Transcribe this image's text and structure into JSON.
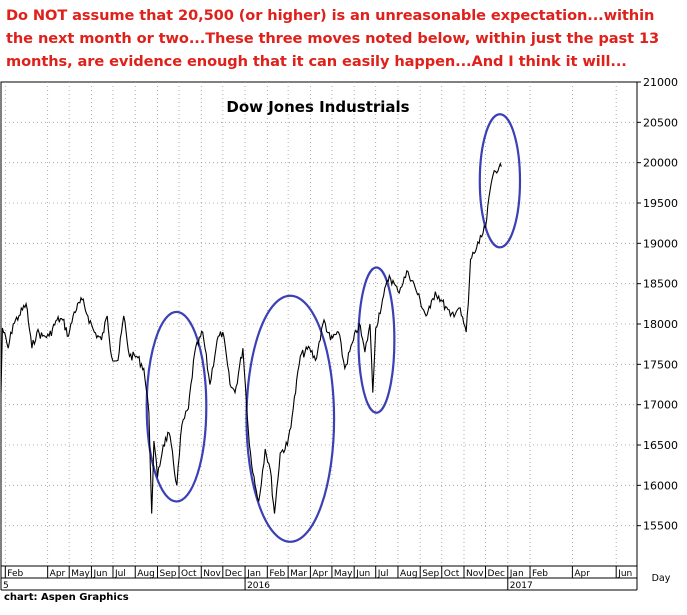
{
  "headline": "Do NOT assume that 20,500 (or higher) is an unreasonable expectation...within the next month or two...These three moves noted below, within just the past 13 months, are evidence enough that it can easily happen...And I think it will...",
  "source": "chart: Aspen Graphics",
  "colors": {
    "headline": "#e0201a",
    "price_line": "#000000",
    "circles": "#3b40b5",
    "grid": "#9a9a9a"
  },
  "chart_data": {
    "type": "line",
    "title": "Dow Jones Industrials",
    "frequency_label": "Day",
    "ylim": [
      15000,
      21000
    ],
    "yticks": [
      15500,
      16000,
      16500,
      17000,
      17500,
      18000,
      18500,
      19000,
      19500,
      20000,
      20500,
      21000
    ],
    "x_range": [
      "2015-01-26",
      "2017-06-30"
    ],
    "month_ticks": [
      {
        "label": "Feb",
        "date": "2015-02-01"
      },
      {
        "label": "Apr",
        "date": "2015-04-01"
      },
      {
        "label": "May",
        "date": "2015-05-01"
      },
      {
        "label": "Jun",
        "date": "2015-06-01"
      },
      {
        "label": "Jul",
        "date": "2015-07-01"
      },
      {
        "label": "Aug",
        "date": "2015-08-01"
      },
      {
        "label": "Sep",
        "date": "2015-09-01"
      },
      {
        "label": "Oct",
        "date": "2015-10-01"
      },
      {
        "label": "Nov",
        "date": "2015-11-01"
      },
      {
        "label": "Dec",
        "date": "2015-12-01"
      },
      {
        "label": "Jan",
        "date": "2016-01-01"
      },
      {
        "label": "Feb",
        "date": "2016-02-01"
      },
      {
        "label": "Mar",
        "date": "2016-03-01"
      },
      {
        "label": "Apr",
        "date": "2016-04-01"
      },
      {
        "label": "May",
        "date": "2016-05-01"
      },
      {
        "label": "Jun",
        "date": "2016-06-01"
      },
      {
        "label": "Jul",
        "date": "2016-07-01"
      },
      {
        "label": "Aug",
        "date": "2016-08-01"
      },
      {
        "label": "Sep",
        "date": "2016-09-01"
      },
      {
        "label": "Oct",
        "date": "2016-10-01"
      },
      {
        "label": "Nov",
        "date": "2016-11-01"
      },
      {
        "label": "Dec",
        "date": "2016-12-01"
      },
      {
        "label": "Jan",
        "date": "2017-01-01"
      },
      {
        "label": "Feb",
        "date": "2017-02-01"
      },
      {
        "label": "Apr",
        "date": "2017-04-01"
      },
      {
        "label": "Jun",
        "date": "2017-06-01"
      }
    ],
    "year_labels": [
      {
        "label": "5",
        "date": "2015-01-26"
      },
      {
        "label": "2016",
        "date": "2016-01-01"
      },
      {
        "label": "2017",
        "date": "2017-01-01"
      }
    ],
    "series": [
      {
        "values": [
          [
            "2015-01-26",
            17150
          ],
          [
            "2015-01-28",
            17950
          ],
          [
            "2015-02-05",
            17700
          ],
          [
            "2015-02-12",
            18000
          ],
          [
            "2015-02-20",
            18100
          ],
          [
            "2015-03-02",
            18250
          ],
          [
            "2015-03-10",
            17700
          ],
          [
            "2015-03-17",
            17900
          ],
          [
            "2015-03-25",
            17850
          ],
          [
            "2015-04-03",
            17850
          ],
          [
            "2015-04-14",
            18050
          ],
          [
            "2015-04-22",
            18050
          ],
          [
            "2015-04-30",
            17850
          ],
          [
            "2015-05-08",
            18150
          ],
          [
            "2015-05-19",
            18300
          ],
          [
            "2015-05-27",
            18100
          ],
          [
            "2015-06-05",
            17900
          ],
          [
            "2015-06-15",
            17800
          ],
          [
            "2015-06-23",
            18100
          ],
          [
            "2015-06-29",
            17600
          ],
          [
            "2015-07-08",
            17550
          ],
          [
            "2015-07-16",
            18100
          ],
          [
            "2015-07-24",
            17600
          ],
          [
            "2015-08-03",
            17600
          ],
          [
            "2015-08-13",
            17450
          ],
          [
            "2015-08-20",
            16900
          ],
          [
            "2015-08-24",
            15650
          ],
          [
            "2015-08-27",
            16550
          ],
          [
            "2015-09-01",
            16100
          ],
          [
            "2015-09-09",
            16500
          ],
          [
            "2015-09-17",
            16650
          ],
          [
            "2015-09-28",
            16000
          ],
          [
            "2015-10-05",
            16750
          ],
          [
            "2015-10-14",
            16950
          ],
          [
            "2015-10-23",
            17650
          ],
          [
            "2015-11-03",
            17900
          ],
          [
            "2015-11-13",
            17250
          ],
          [
            "2015-11-23",
            17800
          ],
          [
            "2015-12-01",
            17900
          ],
          [
            "2015-12-11",
            17250
          ],
          [
            "2015-12-18",
            17150
          ],
          [
            "2015-12-29",
            17700
          ],
          [
            "2016-01-07",
            16500
          ],
          [
            "2016-01-15",
            16000
          ],
          [
            "2016-01-20",
            15800
          ],
          [
            "2016-01-29",
            16450
          ],
          [
            "2016-02-05",
            16200
          ],
          [
            "2016-02-11",
            15650
          ],
          [
            "2016-02-19",
            16400
          ],
          [
            "2016-02-29",
            16500
          ],
          [
            "2016-03-08",
            16950
          ],
          [
            "2016-03-18",
            17600
          ],
          [
            "2016-03-31",
            17700
          ],
          [
            "2016-04-08",
            17550
          ],
          [
            "2016-04-20",
            18050
          ],
          [
            "2016-04-29",
            17800
          ],
          [
            "2016-05-10",
            17900
          ],
          [
            "2016-05-19",
            17450
          ],
          [
            "2016-05-31",
            17800
          ],
          [
            "2016-06-08",
            18000
          ],
          [
            "2016-06-16",
            17650
          ],
          [
            "2016-06-23",
            18000
          ],
          [
            "2016-06-27",
            17150
          ],
          [
            "2016-07-01",
            17950
          ],
          [
            "2016-07-12",
            18350
          ],
          [
            "2016-07-20",
            18600
          ],
          [
            "2016-08-01",
            18400
          ],
          [
            "2016-08-15",
            18650
          ],
          [
            "2016-08-25",
            18450
          ],
          [
            "2016-09-09",
            18100
          ],
          [
            "2016-09-15",
            18200
          ],
          [
            "2016-09-22",
            18400
          ],
          [
            "2016-09-30",
            18300
          ],
          [
            "2016-10-13",
            18100
          ],
          [
            "2016-10-25",
            18200
          ],
          [
            "2016-11-04",
            17900
          ],
          [
            "2016-11-07",
            18250
          ],
          [
            "2016-11-10",
            18800
          ],
          [
            "2016-11-22",
            19000
          ],
          [
            "2016-12-01",
            19200
          ],
          [
            "2016-12-09",
            19750
          ],
          [
            "2016-12-13",
            19900
          ],
          [
            "2016-12-20",
            19950
          ],
          [
            "2016-12-23",
            19950
          ]
        ]
      }
    ],
    "annotations": [
      {
        "type": "ellipse",
        "from": "2015-08-17",
        "to": "2015-11-08",
        "ymin": 15800,
        "ymax": 18150
      },
      {
        "type": "ellipse",
        "from": "2016-01-03",
        "to": "2016-05-04",
        "ymin": 15300,
        "ymax": 18350
      },
      {
        "type": "ellipse",
        "from": "2016-06-07",
        "to": "2016-07-27",
        "ymin": 16900,
        "ymax": 18700
      },
      {
        "type": "ellipse",
        "from": "2016-11-23",
        "to": "2017-01-18",
        "ymin": 18950,
        "ymax": 20600
      }
    ]
  }
}
